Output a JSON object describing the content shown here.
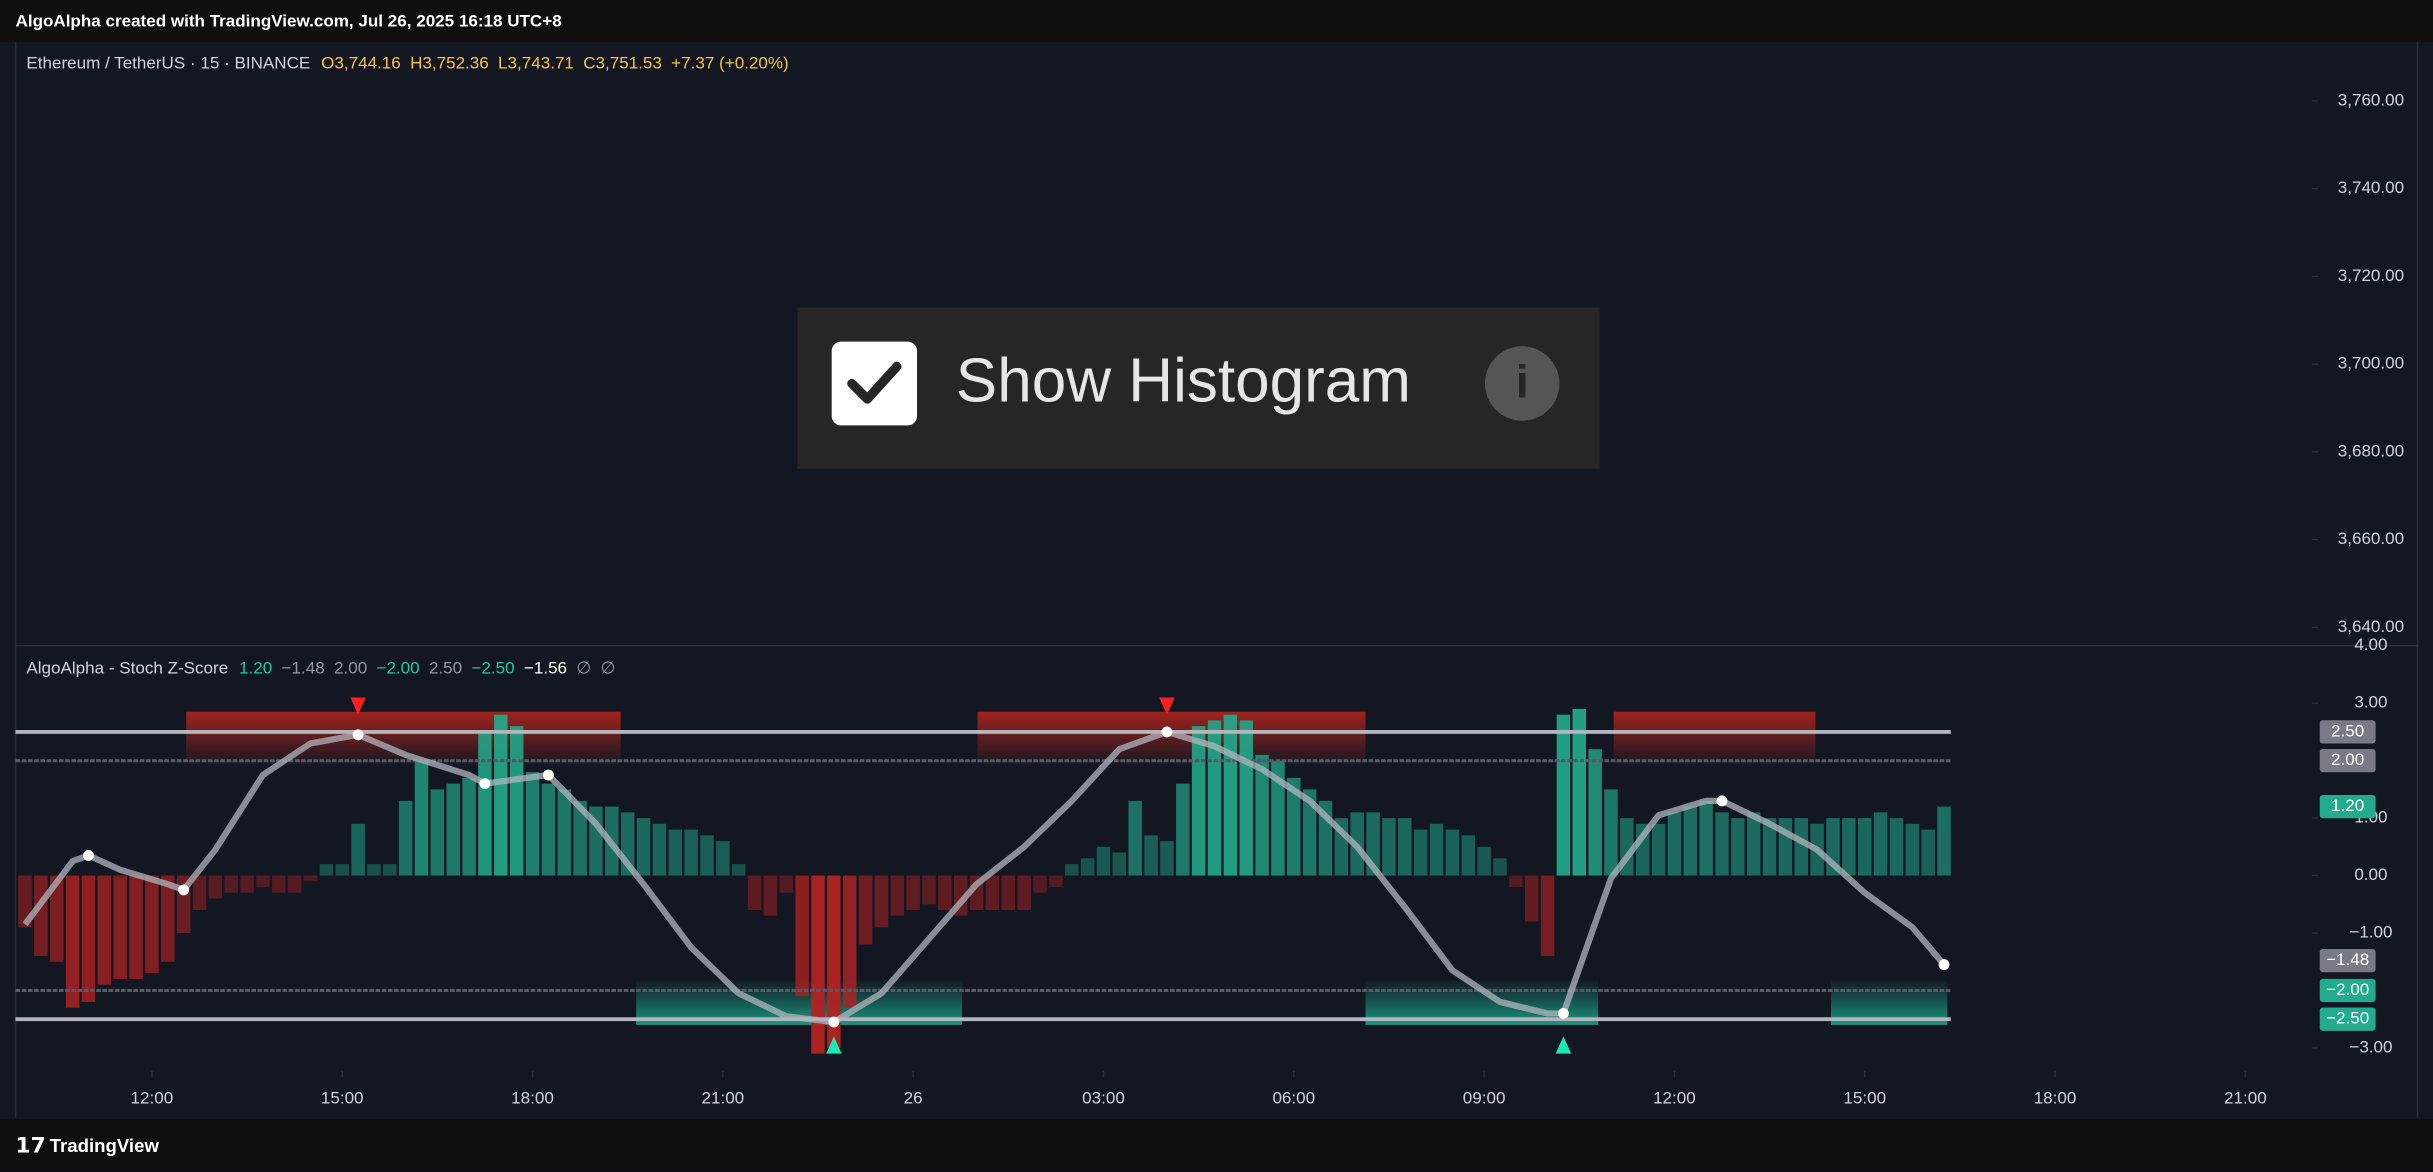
{
  "header": {
    "title": "AlgoAlpha created with TradingView.com, Jul 26, 2025 16:18 UTC+8"
  },
  "footer": {
    "brand": "TradingView"
  },
  "overlay": {
    "label": "Show Histogram",
    "checked": true
  },
  "chart_data": [
    {
      "type": "candlestick",
      "title": "Ethereum / TetherUS · 15 · BINANCE",
      "ohlc_labels": [
        "O3,744.16",
        "H3,752.36",
        "L3,743.71",
        "C3,751.53",
        "+7.37 (+0.20%)"
      ],
      "ohlc_color": "#f7c34a",
      "ylim": [
        3635.8,
        3773.4
      ],
      "yticks": [
        {
          "value": 3640,
          "label": "3,640.00"
        },
        {
          "value": 3660,
          "label": "3,660.00"
        },
        {
          "value": 3680,
          "label": "3,680.00"
        },
        {
          "value": 3700,
          "label": "3,700.00"
        },
        {
          "value": 3720,
          "label": "3,720.00"
        },
        {
          "value": 3740,
          "label": "3,740.00"
        },
        {
          "value": 3760,
          "label": "3,760.00"
        }
      ]
    },
    {
      "type": "histogram",
      "title": "AlgoAlpha - Stoch Z-Score",
      "legend_values": [
        {
          "text": "1.20",
          "color": "#26c6a0"
        },
        {
          "text": "−1.48",
          "color": "#9598a1"
        },
        {
          "text": "2.00",
          "color": "#9598a1"
        },
        {
          "text": "−2.00",
          "color": "#26c6a0"
        },
        {
          "text": "2.50",
          "color": "#9598a1"
        },
        {
          "text": "−2.50",
          "color": "#26c6a0"
        },
        {
          "text": "−1.56",
          "color": "#ffffff"
        },
        {
          "text": "∅",
          "color": "#9598a1"
        },
        {
          "text": "∅",
          "color": "#9598a1"
        }
      ],
      "xlim": [
        -0.6,
        144.2
      ],
      "xticks": [
        {
          "value": 8,
          "label": "12:00"
        },
        {
          "value": 20,
          "label": "15:00"
        },
        {
          "value": 32,
          "label": "18:00"
        },
        {
          "value": 44,
          "label": "21:00"
        },
        {
          "value": 56,
          "label": "26"
        },
        {
          "value": 68,
          "label": "03:00"
        },
        {
          "value": 80,
          "label": "06:00"
        },
        {
          "value": 92,
          "label": "09:00"
        },
        {
          "value": 104,
          "label": "12:00"
        },
        {
          "value": 116,
          "label": "15:00"
        },
        {
          "value": 128,
          "label": "18:00"
        },
        {
          "value": 140,
          "label": "21:00"
        }
      ],
      "ylim": [
        -3.4,
        4.0
      ],
      "yticks": [
        {
          "value": 4,
          "label": "4.00"
        },
        {
          "value": 3,
          "label": "3.00"
        },
        {
          "value": 1,
          "label": "1.00"
        },
        {
          "value": 0,
          "label": "0.00"
        },
        {
          "value": -1,
          "label": "−1.00"
        },
        {
          "value": -3,
          "label": "−3.00"
        }
      ],
      "positive_color": "#22ab8c",
      "negative_color": "#b22222",
      "values": [
        -0.9,
        -1.4,
        -1.5,
        -2.3,
        -2.2,
        -1.9,
        -1.8,
        -1.8,
        -1.7,
        -1.5,
        -1.0,
        -0.6,
        -0.4,
        -0.3,
        -0.3,
        -0.2,
        -0.3,
        -0.3,
        -0.1,
        0.2,
        0.2,
        0.9,
        0.2,
        0.2,
        1.3,
        2.0,
        1.5,
        1.6,
        1.7,
        2.5,
        2.8,
        2.6,
        1.8,
        1.6,
        1.5,
        1.3,
        1.2,
        1.2,
        1.1,
        1.0,
        0.9,
        0.8,
        0.8,
        0.7,
        0.6,
        0.2,
        -0.6,
        -0.7,
        -0.3,
        -2.1,
        -3.1,
        -3.0,
        -2.3,
        -1.2,
        -0.9,
        -0.7,
        -0.6,
        -0.5,
        -0.6,
        -0.7,
        -0.6,
        -0.6,
        -0.6,
        -0.6,
        -0.3,
        -0.2,
        0.2,
        0.3,
        0.5,
        0.4,
        1.3,
        0.7,
        0.6,
        1.6,
        2.6,
        2.7,
        2.8,
        2.7,
        2.1,
        2.0,
        1.7,
        1.5,
        1.3,
        1.0,
        1.1,
        1.1,
        1.0,
        1.0,
        0.8,
        0.9,
        0.8,
        0.7,
        0.5,
        0.3,
        -0.2,
        -0.8,
        -1.4,
        2.8,
        2.9,
        2.2,
        1.5,
        1.0,
        0.9,
        0.9,
        1.1,
        1.2,
        1.3,
        1.1,
        1.0,
        1.1,
        1.0,
        1.0,
        1.0,
        0.9,
        1.0,
        1.0,
        1.0,
        1.1,
        1.0,
        0.9,
        0.8,
        1.2
      ],
      "line": {
        "color": "#b2b5be",
        "x": [
          0,
          3,
          4,
          6,
          9,
          10,
          12,
          15,
          18,
          21,
          24,
          28,
          29,
          33,
          36,
          39,
          42,
          45,
          48,
          51,
          54,
          57,
          60,
          63,
          66,
          69,
          72,
          75,
          78,
          81,
          84,
          87,
          90,
          93,
          96,
          97,
          100,
          103,
          106,
          107,
          110,
          113,
          116,
          119,
          121
        ],
        "values": [
          -0.85,
          0.25,
          0.35,
          0.1,
          -0.15,
          -0.25,
          0.45,
          1.75,
          2.3,
          2.45,
          2.1,
          1.75,
          1.6,
          1.75,
          0.9,
          -0.15,
          -1.25,
          -2.05,
          -2.45,
          -2.55,
          -2.05,
          -1.1,
          -0.15,
          0.5,
          1.3,
          2.2,
          2.5,
          2.25,
          1.85,
          1.3,
          0.5,
          -0.55,
          -1.65,
          -2.2,
          -2.4,
          -2.4,
          -0.05,
          1.05,
          1.3,
          1.3,
          0.9,
          0.45,
          -0.3,
          -0.9,
          -1.55
        ]
      },
      "signal_points": [
        4,
        10,
        21,
        29,
        33,
        51,
        72,
        97,
        107,
        121
      ],
      "sell_signals": [
        21,
        72
      ],
      "buy_signals": [
        51,
        97
      ],
      "levels": [
        2.5,
        2.0,
        -2.0,
        -2.5
      ],
      "level_labels": [
        {
          "value": 2.5,
          "label": "2.50",
          "color": "#787b86"
        },
        {
          "value": 2.0,
          "label": "2.00",
          "color": "#787b86"
        },
        {
          "value": 1.2,
          "label": "1.20",
          "color": "#22ab8c"
        },
        {
          "value": -1.48,
          "label": "−1.48",
          "color": "#787b86"
        },
        {
          "value": -2.0,
          "label": "−2.00",
          "color": "#22ab8c"
        },
        {
          "value": -2.5,
          "label": "−2.50",
          "color": "#22ab8c"
        }
      ]
    }
  ]
}
